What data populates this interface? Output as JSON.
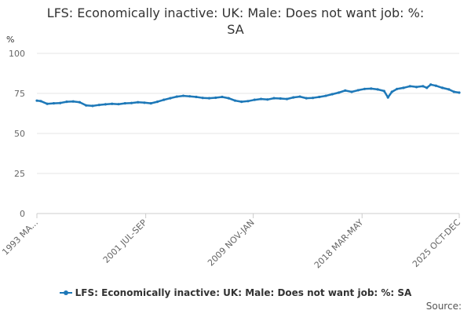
{
  "chart_data": {
    "type": "line",
    "title": "LFS: Economically inactive: UK: Male: Does not want job: %: SA",
    "title_lines": [
      "LFS: Economically inactive: UK: Male: Does not want job: %:",
      "SA"
    ],
    "unit": "%",
    "xlabel": "",
    "ylabel": "",
    "ylim": [
      0,
      100
    ],
    "y_ticks": [
      0,
      25,
      50,
      75,
      100
    ],
    "x_tick_labels": [
      "1993 MA...",
      "2001 JUL-SEP",
      "2009 NOV-JAN",
      "2018 MAR-MAY",
      "2025 OCT-DEC"
    ],
    "x_range": [
      1993.2,
      2025.8
    ],
    "x_tick_positions": [
      1993.2,
      2001.6,
      2009.9,
      2018.3,
      2025.8
    ],
    "grid": true,
    "legend_position": "bottom",
    "series": [
      {
        "name": "LFS: Economically inactive: UK: Male: Does not want job: %: SA",
        "color": "#1d78b8",
        "x": [
          1993.2,
          1993.5,
          1994.0,
          1994.5,
          1995.0,
          1995.5,
          1996.0,
          1996.5,
          1997.0,
          1997.5,
          1998.0,
          1998.5,
          1999.0,
          1999.5,
          2000.0,
          2000.5,
          2001.0,
          2001.5,
          2002.0,
          2002.5,
          2003.0,
          2003.5,
          2004.0,
          2004.5,
          2005.0,
          2005.5,
          2006.0,
          2006.5,
          2007.0,
          2007.5,
          2008.0,
          2008.5,
          2009.0,
          2009.5,
          2010.0,
          2010.5,
          2011.0,
          2011.5,
          2012.0,
          2012.5,
          2013.0,
          2013.5,
          2014.0,
          2014.5,
          2015.0,
          2015.5,
          2016.0,
          2016.5,
          2017.0,
          2017.5,
          2018.0,
          2018.5,
          2019.0,
          2019.5,
          2020.0,
          2020.3,
          2020.6,
          2021.0,
          2021.5,
          2022.0,
          2022.5,
          2023.0,
          2023.3,
          2023.6,
          2024.0,
          2024.5,
          2025.0,
          2025.4,
          2025.8
        ],
        "values": [
          70.5,
          70.2,
          68.5,
          68.8,
          69.0,
          69.8,
          70.0,
          69.5,
          67.5,
          67.2,
          67.8,
          68.2,
          68.5,
          68.3,
          68.8,
          69.0,
          69.5,
          69.2,
          68.8,
          69.8,
          71.0,
          72.0,
          73.0,
          73.5,
          73.2,
          72.8,
          72.2,
          72.0,
          72.3,
          72.8,
          72.0,
          70.5,
          69.8,
          70.2,
          71.0,
          71.5,
          71.2,
          72.0,
          71.8,
          71.5,
          72.5,
          73.0,
          72.0,
          72.2,
          72.8,
          73.5,
          74.5,
          75.5,
          76.8,
          76.0,
          77.0,
          77.8,
          78.0,
          77.5,
          76.5,
          72.5,
          76.0,
          77.8,
          78.5,
          79.5,
          79.0,
          79.5,
          78.5,
          80.5,
          79.8,
          78.5,
          77.5,
          76.0,
          75.5
        ]
      }
    ]
  },
  "source_label": "Source:"
}
